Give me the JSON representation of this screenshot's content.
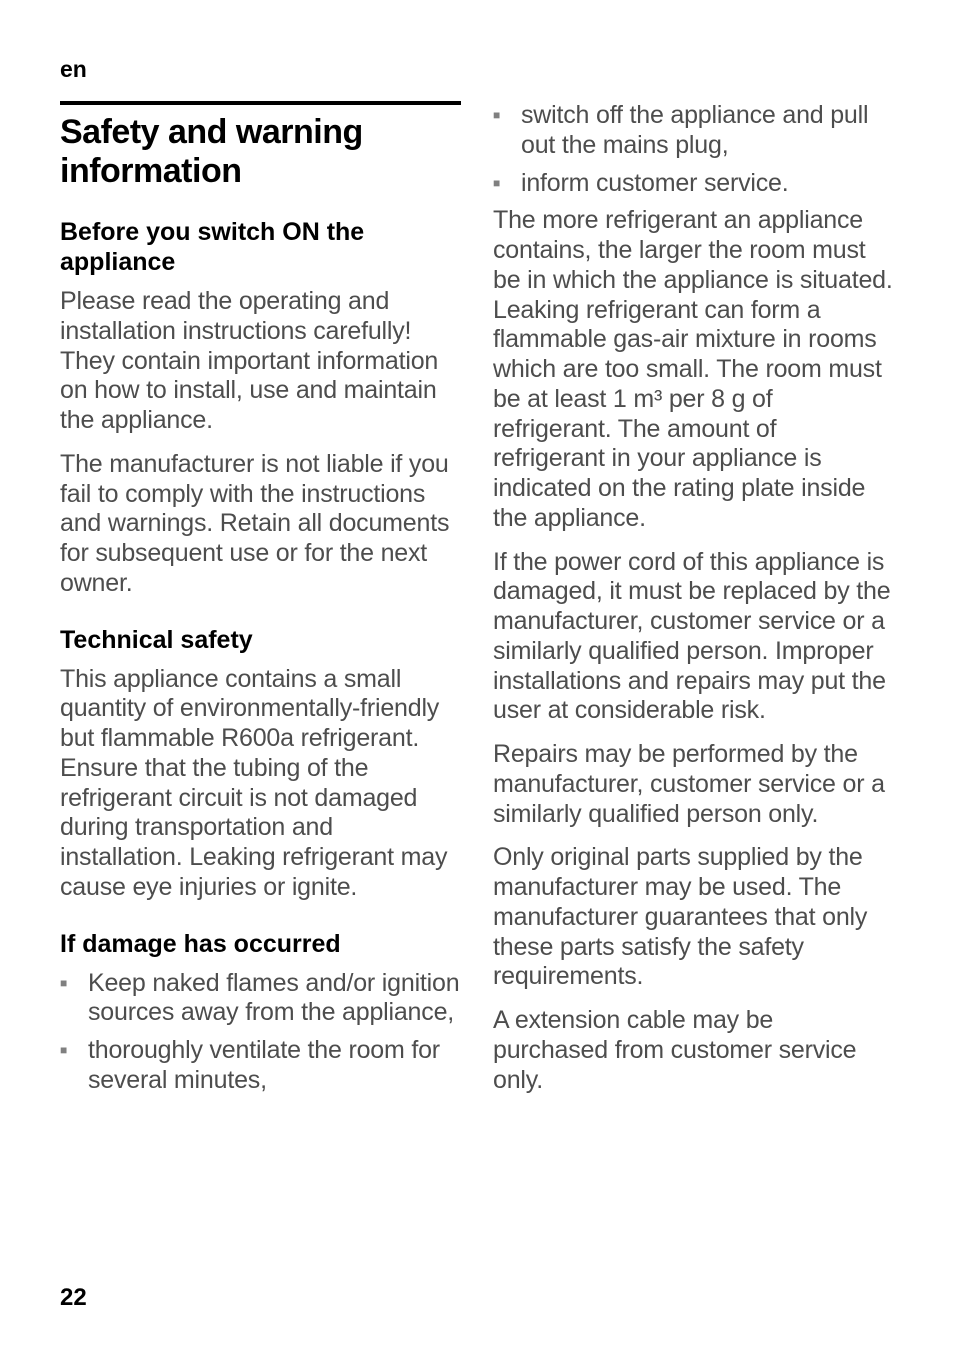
{
  "page": {
    "lang_code": "en",
    "page_number": "22"
  },
  "left": {
    "heading": "Safety and warning information",
    "sect1_title": "Before you switch ON the appliance",
    "sect1_p1": "Please read the operating and installation instructions carefully! They contain important information on how to install, use and maintain the appliance.",
    "sect1_p2": "The manufacturer is not liable if you fail to comply with the instructions and warnings. Retain all documents for subsequent use or for the next owner.",
    "sect2_title": "Technical safety",
    "sect2_p1": "This appliance contains a small quantity of environmentally-friendly but flammable R600a refrigerant. Ensure that the tubing of the refrigerant circuit is not damaged during transportation and installation. Leaking refrigerant may cause eye injuries or ignite.",
    "sect3_title": "If damage has occurred",
    "sect3_bullets": [
      "Keep naked flames and/or ignition sources away from the appliance,",
      "thoroughly ventilate the room for several minutes,"
    ]
  },
  "right": {
    "bullets": [
      "switch off the appliance and pull out the mains plug,",
      "inform customer service."
    ],
    "p1": "The more refrigerant an appliance contains, the larger the room must be in which the appliance is situated. Leaking refrigerant can form a flammable gas-air mixture in rooms which are too small. The room must be at least 1 m³ per 8 g of refrigerant. The amount of refrigerant in your appliance is indicated on the rating plate inside the appliance.",
    "p2": "If the power cord of this appliance is damaged, it must be replaced by the manufacturer, customer service or a similarly qualified person. Improper installations and repairs may put the user at considerable risk.",
    "p3": "Repairs may be performed by the manufacturer, customer service or a similarly qualified person only.",
    "p4": "Only original parts supplied by the manufacturer may be used. The manufacturer guarantees that only these parts satisfy the safety requirements.",
    "p5": "A extension cable may be purchased from customer service only."
  }
}
